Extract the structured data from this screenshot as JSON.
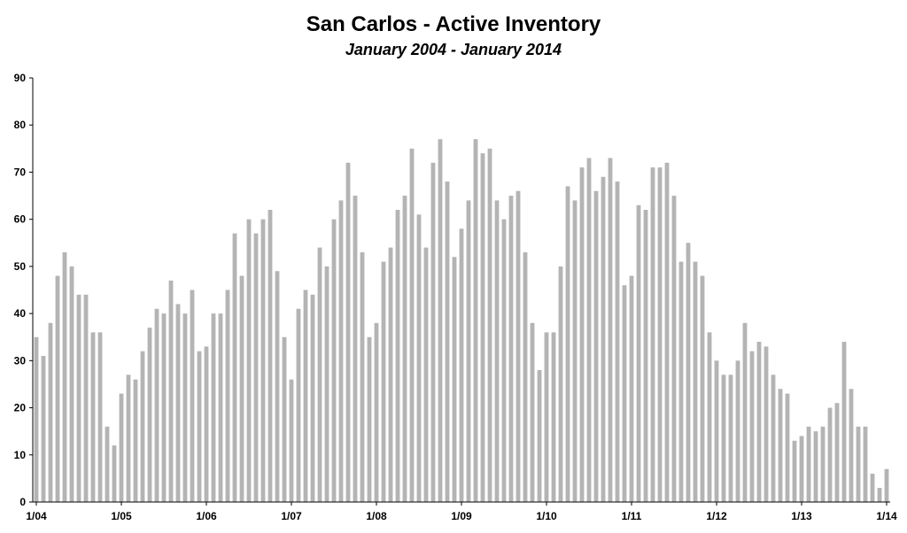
{
  "chart_data": {
    "type": "bar",
    "title": "San Carlos - Active Inventory",
    "subtitle": "January 2004 - January 2014",
    "xlabel": "",
    "ylabel": "",
    "ylim": [
      0,
      90
    ],
    "yticks": [
      0,
      10,
      20,
      30,
      40,
      50,
      60,
      70,
      80,
      90
    ],
    "grid": false,
    "legend": "none",
    "bar_color": "#b4b4b4",
    "xtick_labels": [
      "1/04",
      "1/05",
      "1/06",
      "1/07",
      "1/08",
      "1/09",
      "1/10",
      "1/11",
      "1/12",
      "1/13",
      "1/14"
    ],
    "xtick_every": 12,
    "values": [
      35,
      31,
      38,
      48,
      53,
      50,
      44,
      44,
      36,
      36,
      16,
      12,
      23,
      27,
      26,
      32,
      37,
      41,
      40,
      47,
      42,
      40,
      45,
      32,
      33,
      40,
      40,
      45,
      57,
      48,
      60,
      57,
      60,
      62,
      49,
      35,
      26,
      41,
      45,
      44,
      54,
      50,
      60,
      64,
      72,
      65,
      53,
      35,
      38,
      51,
      54,
      62,
      65,
      75,
      61,
      54,
      72,
      77,
      68,
      52,
      58,
      64,
      77,
      74,
      75,
      64,
      60,
      65,
      66,
      53,
      38,
      28,
      36,
      36,
      50,
      67,
      64,
      71,
      73,
      66,
      69,
      73,
      68,
      46,
      48,
      63,
      62,
      71,
      71,
      72,
      65,
      51,
      55,
      51,
      48,
      36,
      30,
      27,
      27,
      30,
      38,
      32,
      34,
      33,
      27,
      24,
      23,
      13,
      14,
      16,
      15,
      16,
      20,
      21,
      34,
      24,
      16,
      16,
      6,
      3,
      7
    ]
  }
}
